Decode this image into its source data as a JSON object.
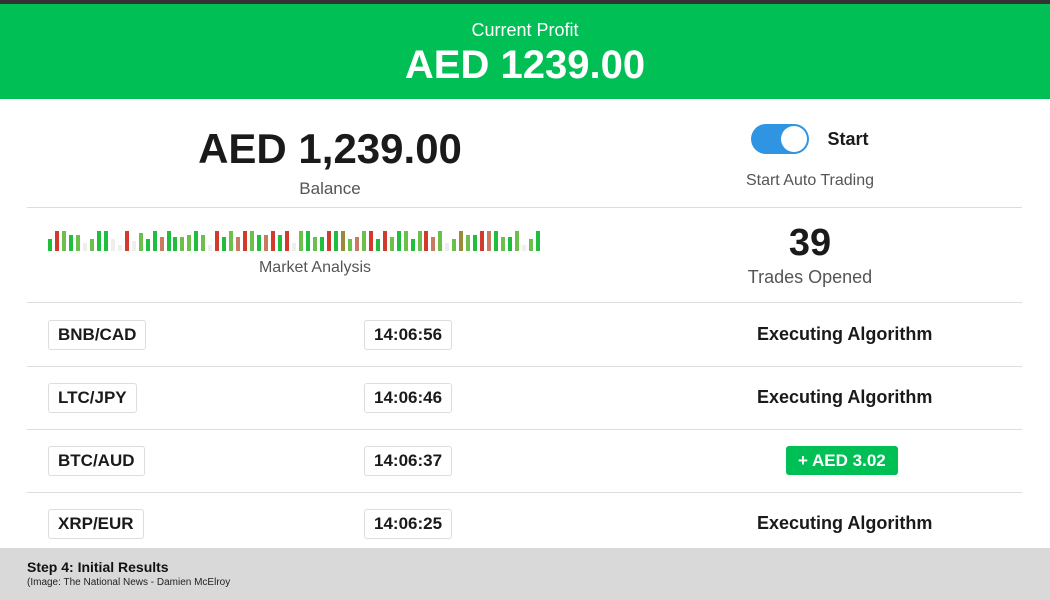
{
  "header": {
    "label": "Current Profit",
    "value": "AED 1239.00",
    "color": "#00c055"
  },
  "balance": {
    "amount": "AED 1,239.00",
    "label": "Balance"
  },
  "auto_trading": {
    "toggle_on": true,
    "toggle_label": "Start",
    "label": "Start Auto Trading",
    "color": "#2f95e3"
  },
  "market_analysis": {
    "label": "Market Analysis",
    "bars": [
      [
        "g",
        0.6
      ],
      [
        "r",
        1
      ],
      [
        "l",
        1
      ],
      [
        "g",
        0.8
      ],
      [
        "l",
        0.8
      ],
      [
        "x",
        0.4
      ],
      [
        "l",
        0.6
      ],
      [
        "g",
        1
      ],
      [
        "g",
        1
      ],
      [
        "x",
        0.6
      ],
      [
        "x",
        0.3
      ],
      [
        "r",
        1
      ],
      [
        "x",
        0.5
      ],
      [
        "l",
        0.9
      ],
      [
        "g",
        0.6
      ],
      [
        "g",
        1
      ],
      [
        "o",
        0.7
      ],
      [
        "g",
        1
      ],
      [
        "g",
        0.7
      ],
      [
        "l",
        0.7
      ],
      [
        "l",
        0.8
      ],
      [
        "g",
        1
      ],
      [
        "l",
        0.8
      ],
      [
        "x",
        0.3
      ],
      [
        "r",
        1
      ],
      [
        "g",
        0.7
      ],
      [
        "l",
        1
      ],
      [
        "o",
        0.7
      ],
      [
        "r",
        1
      ],
      [
        "l",
        1
      ],
      [
        "g",
        0.8
      ],
      [
        "o",
        0.8
      ],
      [
        "r",
        1
      ],
      [
        "g",
        0.8
      ],
      [
        "r",
        1
      ],
      [
        "x",
        0.4
      ],
      [
        "l",
        1
      ],
      [
        "g",
        1
      ],
      [
        "l",
        0.7
      ],
      [
        "g",
        0.7
      ],
      [
        "r",
        1
      ],
      [
        "g",
        1
      ],
      [
        "y",
        1
      ],
      [
        "l",
        0.6
      ],
      [
        "o",
        0.7
      ],
      [
        "l",
        1
      ],
      [
        "r",
        1
      ],
      [
        "g",
        0.6
      ],
      [
        "r",
        1
      ],
      [
        "l",
        0.7
      ],
      [
        "g",
        1
      ],
      [
        "l",
        1
      ],
      [
        "g",
        0.6
      ],
      [
        "l",
        1
      ],
      [
        "r",
        1
      ],
      [
        "o",
        0.7
      ],
      [
        "l",
        1
      ],
      [
        "x",
        0.4
      ],
      [
        "l",
        0.6
      ],
      [
        "y",
        1
      ],
      [
        "l",
        0.8
      ],
      [
        "g",
        0.8
      ],
      [
        "r",
        1
      ],
      [
        "o",
        1
      ],
      [
        "g",
        1
      ],
      [
        "l",
        0.7
      ],
      [
        "g",
        0.7
      ],
      [
        "l",
        1
      ],
      [
        "x",
        0.3
      ],
      [
        "l",
        0.6
      ],
      [
        "g",
        1
      ]
    ],
    "bar_colors": {
      "g": "#1fbe3f",
      "l": "#6cbf4a",
      "r": "#d13a2c",
      "o": "#c87a62",
      "y": "#9a8a3c",
      "x": "#eeeeee"
    }
  },
  "trades": {
    "count": "39",
    "label": "Trades Opened"
  },
  "rows": [
    {
      "pair": "BNB/CAD",
      "time": "14:06:56",
      "status": "Executing Algorithm",
      "profit": null
    },
    {
      "pair": "LTC/JPY",
      "time": "14:06:46",
      "status": "Executing Algorithm",
      "profit": null
    },
    {
      "pair": "BTC/AUD",
      "time": "14:06:37",
      "status": null,
      "profit": "+ AED 3.02"
    },
    {
      "pair": "XRP/EUR",
      "time": "14:06:25",
      "status": "Executing Algorithm",
      "profit": null
    }
  ],
  "footer": {
    "title": "Step 4: Initial Results",
    "caption": "(Image:  The National News - Damien McElroy"
  }
}
